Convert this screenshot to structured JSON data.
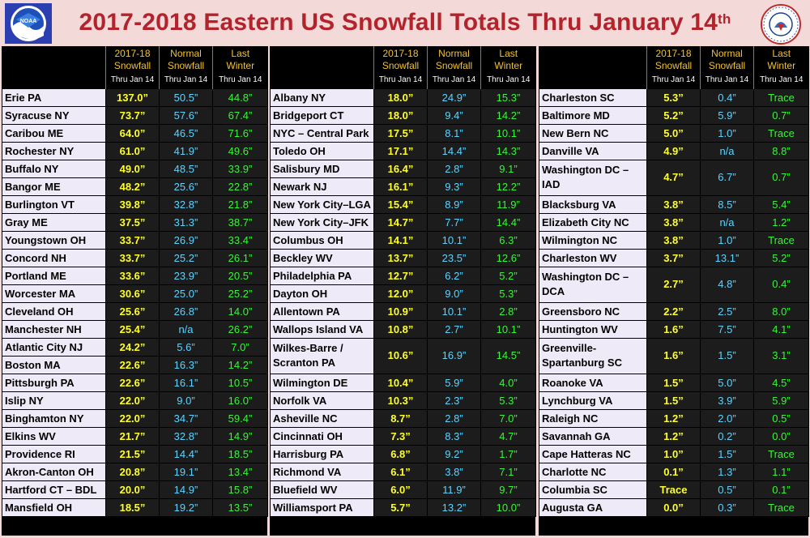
{
  "title": {
    "main": "2017-2018 Eastern US Snowfall Totals Thru January 14",
    "suffix": "th"
  },
  "logos": {
    "left": "NOAA",
    "right": "NATIONAL WEATHER SERVICE"
  },
  "headers": {
    "col1_line1": "2017-18",
    "col1_line2": "Snowfall",
    "col1_sub": "Thru Jan 14",
    "col2_line1": "Normal",
    "col2_line2": "Snowfall",
    "col2_sub": "Thru Jan 14",
    "col3_line1": "Last",
    "col3_line2": "Winter",
    "col3_sub": "Thru Jan 14"
  },
  "colors": {
    "title": "#b2232b",
    "season": "#ffff2e",
    "normal": "#5fd3ff",
    "last_winter": "#3cf23c",
    "background": "#f4d9d9"
  },
  "tables": [
    {
      "rows": [
        {
          "city": "Erie PA",
          "season": "137.0”",
          "normal": "50.5”",
          "last": "44.8”"
        },
        {
          "city": "Syracuse NY",
          "season": "73.7”",
          "normal": "57.6”",
          "last": "67.4”"
        },
        {
          "city": "Caribou ME",
          "season": "64.0”",
          "normal": "46.5”",
          "last": "71.6”"
        },
        {
          "city": "Rochester NY",
          "season": "61.0”",
          "normal": "41.9”",
          "last": "49.6”"
        },
        {
          "city": "Buffalo NY",
          "season": "49.0”",
          "normal": "48.5”",
          "last": "33.9”"
        },
        {
          "city": "Bangor ME",
          "season": "48.2”",
          "normal": "25.6”",
          "last": "22.8”"
        },
        {
          "city": "Burlington VT",
          "season": "39.8”",
          "normal": "32.8”",
          "last": "21.8”"
        },
        {
          "city": "Gray ME",
          "season": "37.5”",
          "normal": "31.3”",
          "last": "38.7”"
        },
        {
          "city": "Youngstown OH",
          "season": "33.7”",
          "normal": "26.9”",
          "last": "33.4”"
        },
        {
          "city": "Concord NH",
          "season": "33.7”",
          "normal": "25.2”",
          "last": "26.1”"
        },
        {
          "city": "Portland ME",
          "season": "33.6”",
          "normal": "23.9”",
          "last": "20.5”"
        },
        {
          "city": "Worcester MA",
          "season": "30.6”",
          "normal": "25.0”",
          "last": "25.2”"
        },
        {
          "city": "Cleveland OH",
          "season": "25.6”",
          "normal": "26.8”",
          "last": "14.0”"
        },
        {
          "city": "Manchester NH",
          "season": "25.4”",
          "normal": "n/a",
          "last": "26.2”"
        },
        {
          "city": "Atlantic City NJ",
          "season": "24.2”",
          "normal": "5.6”",
          "last": "7.0”"
        },
        {
          "city": "Boston MA",
          "season": "22.6”",
          "normal": "16.3”",
          "last": "14.2”"
        },
        {
          "city": "Pittsburgh PA",
          "season": "22.6”",
          "normal": "16.1”",
          "last": "10.5”"
        },
        {
          "city": "Islip NY",
          "season": "22.0”",
          "normal": "9.0”",
          "last": "16.0”"
        },
        {
          "city": "Binghamton NY",
          "season": "22.0”",
          "normal": "34.7”",
          "last": "59.4”"
        },
        {
          "city": "Elkins WV",
          "season": "21.7”",
          "normal": "32.8”",
          "last": "14.9”"
        },
        {
          "city": "Providence RI",
          "season": "21.5”",
          "normal": "14.4”",
          "last": "18.5”"
        },
        {
          "city": "Akron-Canton OH",
          "season": "20.8”",
          "normal": "19.1”",
          "last": "13.4”"
        },
        {
          "city": "Hartford CT – BDL",
          "season": "20.0”",
          "normal": "14.9”",
          "last": "15.8”"
        },
        {
          "city": "Mansfield OH",
          "season": "18.5”",
          "normal": "19.2”",
          "last": "13.5”"
        }
      ]
    },
    {
      "rows": [
        {
          "city": "Albany NY",
          "season": "18.0”",
          "normal": "24.9”",
          "last": "15.3”"
        },
        {
          "city": "Bridgeport CT",
          "season": "18.0”",
          "normal": "9.4”",
          "last": "14.2”"
        },
        {
          "city": "NYC – Central Park",
          "season": "17.5”",
          "normal": "8.1”",
          "last": "10.1”"
        },
        {
          "city": "Toledo OH",
          "season": "17.1”",
          "normal": "14.4”",
          "last": "14.3”"
        },
        {
          "city": "Salisbury MD",
          "season": "16.4”",
          "normal": "2.8”",
          "last": "9.1”"
        },
        {
          "city": "Newark NJ",
          "season": "16.1”",
          "normal": "9.3”",
          "last": "12.2”"
        },
        {
          "city": "New York City–LGA",
          "season": "15.4”",
          "normal": "8.9”",
          "last": "11.9”"
        },
        {
          "city": "New York City–JFK",
          "season": "14.7”",
          "normal": "7.7”",
          "last": "14.4”"
        },
        {
          "city": "Columbus OH",
          "season": "14.1”",
          "normal": "10.1”",
          "last": "6.3”"
        },
        {
          "city": "Beckley WV",
          "season": "13.7”",
          "normal": "23.5”",
          "last": "12.6”"
        },
        {
          "city": "Philadelphia PA",
          "season": "12.7”",
          "normal": "6.2”",
          "last": "5.2”"
        },
        {
          "city": "Dayton OH",
          "season": "12.0”",
          "normal": "9.0”",
          "last": "5.3”"
        },
        {
          "city": "Allentown PA",
          "season": "10.9”",
          "normal": "10.1”",
          "last": "2.8”"
        },
        {
          "city": "Wallops Island VA",
          "season": "10.8”",
          "normal": "2.7”",
          "last": "10.1”"
        },
        {
          "city": "Wilkes-Barre / Scranton PA",
          "season": "10.6”",
          "normal": "16.9”",
          "last": "14.5”",
          "tall": true
        },
        {
          "city": "Wilmington DE",
          "season": "10.4”",
          "normal": "5.9”",
          "last": "4.0”"
        },
        {
          "city": "Norfolk VA",
          "season": "10.3”",
          "normal": "2.3”",
          "last": "5.3”"
        },
        {
          "city": "Asheville NC",
          "season": "8.7”",
          "normal": "2.8”",
          "last": "7.0”"
        },
        {
          "city": "Cincinnati OH",
          "season": "7.3”",
          "normal": "8.3”",
          "last": "4.7”"
        },
        {
          "city": "Harrisburg PA",
          "season": "6.8”",
          "normal": "9.2”",
          "last": "1.7”"
        },
        {
          "city": "Richmond VA",
          "season": "6.1”",
          "normal": "3.8”",
          "last": "7.1”"
        },
        {
          "city": "Bluefield WV",
          "season": "6.0”",
          "normal": "11.9”",
          "last": "9.7”"
        },
        {
          "city": "Williamsport PA",
          "season": "5.7”",
          "normal": "13.2”",
          "last": "10.0”"
        }
      ]
    },
    {
      "rows": [
        {
          "city": "Charleston SC",
          "season": "5.3”",
          "normal": "0.4”",
          "last": "Trace"
        },
        {
          "city": "Baltimore MD",
          "season": "5.2”",
          "normal": "5.9”",
          "last": "0.7”"
        },
        {
          "city": "New Bern NC",
          "season": "5.0”",
          "normal": "1.0”",
          "last": "Trace"
        },
        {
          "city": "Danville VA",
          "season": "4.9”",
          "normal": "n/a",
          "last": "8.8”"
        },
        {
          "city": "Washington DC – IAD",
          "season": "4.7”",
          "normal": "6.7”",
          "last": "0.7”",
          "tall": true
        },
        {
          "city": "Blacksburg VA",
          "season": "3.8”",
          "normal": "8.5”",
          "last": "5.4”"
        },
        {
          "city": "Elizabeth City NC",
          "season": "3.8”",
          "normal": "n/a",
          "last": "1.2”"
        },
        {
          "city": "Wilmington NC",
          "season": "3.8”",
          "normal": "1.0”",
          "last": "Trace"
        },
        {
          "city": "Charleston WV",
          "season": "3.7”",
          "normal": "13.1”",
          "last": "5.2”"
        },
        {
          "city": "Washington DC – DCA",
          "season": "2.7”",
          "normal": "4.8”",
          "last": "0.4”",
          "tall": true
        },
        {
          "city": "Greensboro NC",
          "season": "2.2”",
          "normal": "2.5”",
          "last": "8.0”"
        },
        {
          "city": "Huntington WV",
          "season": "1.6”",
          "normal": "7.5”",
          "last": "4.1”"
        },
        {
          "city": "Greenville-Spartanburg SC",
          "season": "1.6”",
          "normal": "1.5”",
          "last": "3.1”",
          "tall": true
        },
        {
          "city": "Roanoke VA",
          "season": "1.5”",
          "normal": "5.0”",
          "last": "4.5”"
        },
        {
          "city": "Lynchburg VA",
          "season": "1.5”",
          "normal": "3.9”",
          "last": "5.9”"
        },
        {
          "city": "Raleigh NC",
          "season": "1.2”",
          "normal": "2.0”",
          "last": "0.5”"
        },
        {
          "city": "Savannah GA",
          "season": "1.2”",
          "normal": "0.2”",
          "last": "0.0”"
        },
        {
          "city": "Cape Hatteras NC",
          "season": "1.0”",
          "normal": "1.5”",
          "last": "Trace"
        },
        {
          "city": "Charlotte NC",
          "season": "0.1”",
          "normal": "1.3”",
          "last": "1.1”"
        },
        {
          "city": "Columbia SC",
          "season": "Trace",
          "normal": "0.5”",
          "last": "0.1”"
        },
        {
          "city": "Augusta GA",
          "season": "0.0”",
          "normal": "0.3”",
          "last": "Trace"
        }
      ]
    }
  ]
}
